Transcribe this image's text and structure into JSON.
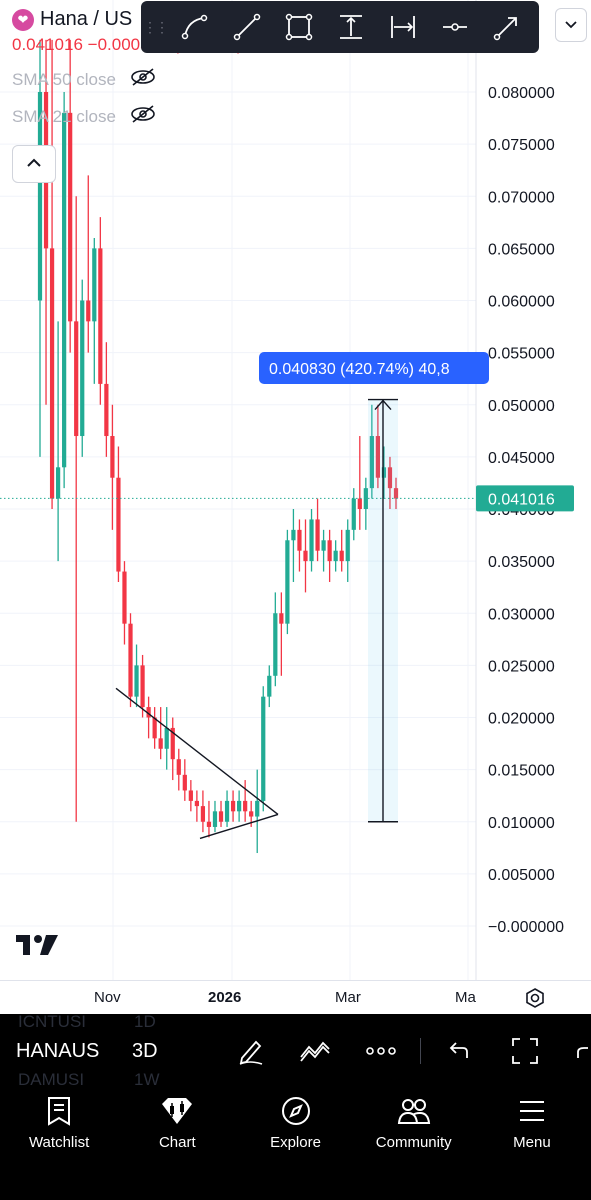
{
  "legend": {
    "symbol": "Hana / US",
    "last": "0.041016",
    "change": "−0.000577 (−1.39%)",
    "indicators": [
      {
        "label": "SMA 50 close",
        "icon": "eye-off-icon"
      },
      {
        "label": "SMA 21 close",
        "icon": "eye-off-icon"
      }
    ]
  },
  "drawing_tools": [
    "curve-tool-icon",
    "trend-line-icon",
    "rectangle-icon",
    "price-range-icon",
    "date-range-icon",
    "horizontal-ray-icon",
    "arrow-icon"
  ],
  "price_axis": {
    "ticks": [
      "0.080000",
      "0.075000",
      "0.070000",
      "0.065000",
      "0.060000",
      "0.055000",
      "0.050000",
      "0.045000",
      "0.040000",
      "0.035000",
      "0.030000",
      "0.025000",
      "0.020000",
      "0.015000",
      "0.010000",
      "0.005000",
      "−0.000000"
    ],
    "last_price_label": "0.041016"
  },
  "measure_label": "0.040830 (420.74%) 40,8",
  "time_axis": {
    "labels": [
      {
        "text": "Nov",
        "bold": false
      },
      {
        "text": "2026",
        "bold": true
      },
      {
        "text": "Mar",
        "bold": false
      },
      {
        "text": "Ma",
        "bold": false
      }
    ]
  },
  "watchlist_bar": {
    "symbol": "HANAUS",
    "timeframe": "3D",
    "ghost_above": [
      "ICNTUSI",
      "1D"
    ],
    "ghost_below": [
      "DAMUSI",
      "1W"
    ]
  },
  "bottom_nav": [
    {
      "label": "Watchlist",
      "icon": "watchlist-icon"
    },
    {
      "label": "Chart",
      "icon": "chart-icon"
    },
    {
      "label": "Explore",
      "icon": "compass-icon"
    },
    {
      "label": "Community",
      "icon": "community-icon"
    },
    {
      "label": "Menu",
      "icon": "menu-icon"
    }
  ],
  "colors": {
    "up": "#22ab94",
    "down": "#f23645",
    "measure": "#2962ff",
    "nav_bg": "#000000"
  },
  "chart_data": {
    "type": "candlestick",
    "ylim": [
      -0.002,
      0.085
    ],
    "last_price": 0.041016,
    "candles": [
      {
        "o": 0.06,
        "h": 0.085,
        "l": 0.045,
        "c": 0.08
      },
      {
        "o": 0.08,
        "h": 0.085,
        "l": 0.05,
        "c": 0.065
      },
      {
        "o": 0.065,
        "h": 0.085,
        "l": 0.04,
        "c": 0.041
      },
      {
        "o": 0.041,
        "h": 0.058,
        "l": 0.035,
        "c": 0.044
      },
      {
        "o": 0.044,
        "h": 0.08,
        "l": 0.042,
        "c": 0.078
      },
      {
        "o": 0.078,
        "h": 0.085,
        "l": 0.055,
        "c": 0.058
      },
      {
        "o": 0.058,
        "h": 0.07,
        "l": 0.01,
        "c": 0.047
      },
      {
        "o": 0.047,
        "h": 0.062,
        "l": 0.045,
        "c": 0.06
      },
      {
        "o": 0.06,
        "h": 0.072,
        "l": 0.055,
        "c": 0.058
      },
      {
        "o": 0.058,
        "h": 0.066,
        "l": 0.052,
        "c": 0.065
      },
      {
        "o": 0.065,
        "h": 0.068,
        "l": 0.05,
        "c": 0.052
      },
      {
        "o": 0.052,
        "h": 0.056,
        "l": 0.045,
        "c": 0.047
      },
      {
        "o": 0.047,
        "h": 0.05,
        "l": 0.038,
        "c": 0.043
      },
      {
        "o": 0.043,
        "h": 0.046,
        "l": 0.033,
        "c": 0.034
      },
      {
        "o": 0.034,
        "h": 0.035,
        "l": 0.027,
        "c": 0.029
      },
      {
        "o": 0.029,
        "h": 0.03,
        "l": 0.021,
        "c": 0.022
      },
      {
        "o": 0.022,
        "h": 0.027,
        "l": 0.021,
        "c": 0.025
      },
      {
        "o": 0.025,
        "h": 0.026,
        "l": 0.02,
        "c": 0.021
      },
      {
        "o": 0.021,
        "h": 0.022,
        "l": 0.018,
        "c": 0.02
      },
      {
        "o": 0.02,
        "h": 0.021,
        "l": 0.017,
        "c": 0.018
      },
      {
        "o": 0.018,
        "h": 0.021,
        "l": 0.016,
        "c": 0.017
      },
      {
        "o": 0.017,
        "h": 0.021,
        "l": 0.015,
        "c": 0.019
      },
      {
        "o": 0.019,
        "h": 0.02,
        "l": 0.014,
        "c": 0.016
      },
      {
        "o": 0.016,
        "h": 0.017,
        "l": 0.013,
        "c": 0.0145
      },
      {
        "o": 0.0145,
        "h": 0.016,
        "l": 0.012,
        "c": 0.013
      },
      {
        "o": 0.013,
        "h": 0.014,
        "l": 0.011,
        "c": 0.012
      },
      {
        "o": 0.012,
        "h": 0.013,
        "l": 0.01,
        "c": 0.0115
      },
      {
        "o": 0.0115,
        "h": 0.013,
        "l": 0.009,
        "c": 0.01
      },
      {
        "o": 0.01,
        "h": 0.012,
        "l": 0.0085,
        "c": 0.0095
      },
      {
        "o": 0.0095,
        "h": 0.012,
        "l": 0.009,
        "c": 0.011
      },
      {
        "o": 0.011,
        "h": 0.012,
        "l": 0.0095,
        "c": 0.01
      },
      {
        "o": 0.01,
        "h": 0.013,
        "l": 0.0095,
        "c": 0.012
      },
      {
        "o": 0.012,
        "h": 0.013,
        "l": 0.01,
        "c": 0.011
      },
      {
        "o": 0.011,
        "h": 0.013,
        "l": 0.01,
        "c": 0.012
      },
      {
        "o": 0.012,
        "h": 0.014,
        "l": 0.01,
        "c": 0.011
      },
      {
        "o": 0.011,
        "h": 0.012,
        "l": 0.0095,
        "c": 0.0105
      },
      {
        "o": 0.0105,
        "h": 0.015,
        "l": 0.007,
        "c": 0.012
      },
      {
        "o": 0.012,
        "h": 0.023,
        "l": 0.011,
        "c": 0.022
      },
      {
        "o": 0.022,
        "h": 0.025,
        "l": 0.021,
        "c": 0.024
      },
      {
        "o": 0.024,
        "h": 0.032,
        "l": 0.023,
        "c": 0.03
      },
      {
        "o": 0.03,
        "h": 0.032,
        "l": 0.024,
        "c": 0.029
      },
      {
        "o": 0.029,
        "h": 0.038,
        "l": 0.028,
        "c": 0.037
      },
      {
        "o": 0.037,
        "h": 0.04,
        "l": 0.033,
        "c": 0.038
      },
      {
        "o": 0.038,
        "h": 0.039,
        "l": 0.034,
        "c": 0.036
      },
      {
        "o": 0.036,
        "h": 0.039,
        "l": 0.032,
        "c": 0.035
      },
      {
        "o": 0.035,
        "h": 0.04,
        "l": 0.034,
        "c": 0.039
      },
      {
        "o": 0.039,
        "h": 0.041,
        "l": 0.035,
        "c": 0.036
      },
      {
        "o": 0.036,
        "h": 0.038,
        "l": 0.034,
        "c": 0.037
      },
      {
        "o": 0.037,
        "h": 0.038,
        "l": 0.033,
        "c": 0.035
      },
      {
        "o": 0.035,
        "h": 0.037,
        "l": 0.034,
        "c": 0.036
      },
      {
        "o": 0.036,
        "h": 0.038,
        "l": 0.034,
        "c": 0.035
      },
      {
        "o": 0.035,
        "h": 0.039,
        "l": 0.033,
        "c": 0.038
      },
      {
        "o": 0.038,
        "h": 0.042,
        "l": 0.037,
        "c": 0.041
      },
      {
        "o": 0.041,
        "h": 0.047,
        "l": 0.038,
        "c": 0.04
      },
      {
        "o": 0.04,
        "h": 0.043,
        "l": 0.038,
        "c": 0.042
      },
      {
        "o": 0.042,
        "h": 0.05,
        "l": 0.041,
        "c": 0.047
      },
      {
        "o": 0.047,
        "h": 0.05,
        "l": 0.042,
        "c": 0.043
      },
      {
        "o": 0.043,
        "h": 0.046,
        "l": 0.041,
        "c": 0.044
      },
      {
        "o": 0.044,
        "h": 0.045,
        "l": 0.04,
        "c": 0.042
      },
      {
        "o": 0.042,
        "h": 0.043,
        "l": 0.04,
        "c": 0.041
      }
    ],
    "triangle_upper": [
      [
        0.0228,
        0
      ],
      [
        0.0107,
        1
      ]
    ],
    "triangle_lower": [
      [
        0.0084,
        0
      ],
      [
        0.0107,
        1
      ]
    ],
    "measure": {
      "from": 0.01,
      "to": 0.0505
    }
  }
}
